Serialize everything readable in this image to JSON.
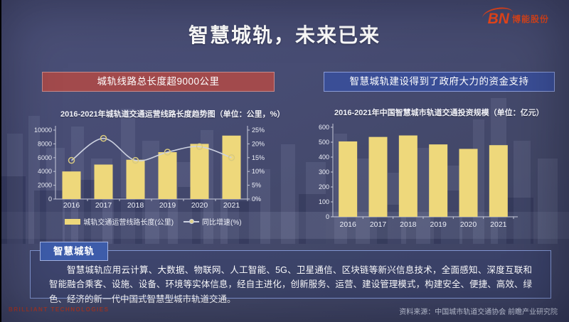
{
  "slide": {
    "title": "智慧城轨，未来已来",
    "logo": {
      "abbr": "BN",
      "name": "博能股份"
    },
    "footer_brand": "BRILLIANT TECHNOLOGIES",
    "source_note": "资料来源：中国城市轨道交通协会 前瞻产业研究院"
  },
  "left_panel": {
    "banner": "城轨线路总长度超9000公里"
  },
  "right_panel": {
    "banner": "智慧城轨建设得到了政府大力的资金支持"
  },
  "info_box": {
    "tab": "智慧城轨",
    "body": "智慧城轨应用云计算、大数据、物联网、人工智能、5G、卫星通信、区块链等新兴信息技术，全面感知、深度互联和智能融合乘客、设施、设备、环境等实体信息，经自主进化，创新服务、运营、建设管理模式，构建安全、便捷、高效、绿色、经济的新一代中国式智慧型城市轨道交通。"
  },
  "colors": {
    "bar_yellow": "#eed87b",
    "line_gray": "#ccd1e0",
    "banner_red": "#a24a4c",
    "banner_blue": "#3a4e96",
    "tab_blue": "#3d5caa",
    "logo_orange": "#f2491c"
  },
  "chart_data": [
    {
      "type": "bar",
      "title": "2016-2021年城轨道交通运营线路长度趋势图（单位：公里，%）",
      "categories": [
        "2016",
        "2017",
        "2018",
        "2019",
        "2020",
        "2021"
      ],
      "series": [
        {
          "name": "城轨交通运营线路长度(公里)",
          "type": "bar",
          "axis": "left",
          "values": [
            4000,
            5000,
            5700,
            6800,
            8000,
            9200
          ],
          "color": "#eed87b"
        },
        {
          "name": "同比增速(%)",
          "type": "line",
          "axis": "right",
          "values": [
            14,
            22,
            14,
            17,
            19,
            15
          ],
          "color": "#ccd1e0"
        }
      ],
      "y_left": {
        "min": 0,
        "max": 10000,
        "step": 2000
      },
      "y_right": {
        "min": 0,
        "max": 25,
        "step": 5,
        "suffix": "%"
      },
      "legend_position": "bottom",
      "grid": false
    },
    {
      "type": "bar",
      "title": "2016-2021年中国智慧城市轨道交通投资规模（单位：亿元）",
      "categories": [
        "2016",
        "2017",
        "2018",
        "2019",
        "2020",
        "2021"
      ],
      "values": [
        505,
        535,
        545,
        485,
        455,
        480
      ],
      "color": "#eed87b",
      "ylim": [
        0,
        600
      ],
      "ystep": 100,
      "grid": false
    }
  ]
}
